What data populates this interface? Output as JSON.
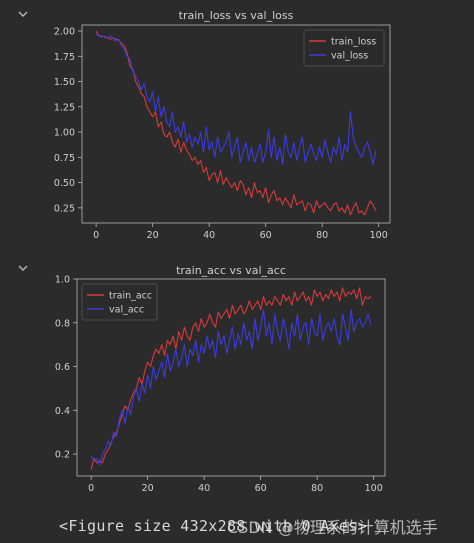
{
  "output_cells": [
    {
      "collapse_icon": "chevron-down-icon"
    },
    {
      "collapse_icon": "chevron-down-icon"
    }
  ],
  "colors": {
    "background": "#2b2b2b",
    "train": "#d63a3a",
    "val": "#3b3be0",
    "axis": "#b8b8b8",
    "text": "#cfcfcf"
  },
  "figure_output": {
    "text": "<Figure size 432x288 with 0 Axes>"
  },
  "watermark": {
    "text": "CSDN @物理系的计算机选手"
  },
  "chart_data": [
    {
      "type": "line",
      "title": "train_loss vs val_loss",
      "xlabel": "",
      "ylabel": "",
      "xlim": [
        -5,
        104
      ],
      "ylim": [
        0.1,
        2.06
      ],
      "xticks": [
        0,
        20,
        40,
        60,
        80,
        100
      ],
      "xtick_labels": [
        "0",
        "20",
        "40",
        "60",
        "80",
        "100"
      ],
      "yticks": [
        0.25,
        0.5,
        0.75,
        1.0,
        1.25,
        1.5,
        1.75,
        2.0
      ],
      "ytick_labels": [
        "0.25",
        "0.50",
        "0.75",
        "1.00",
        "1.25",
        "1.50",
        "1.75",
        "2.00"
      ],
      "legend_position": "upper right",
      "grid": false,
      "series": [
        {
          "name": "train_loss",
          "color": "#d63a3a",
          "x": [
            0,
            1,
            2,
            3,
            4,
            5,
            6,
            7,
            8,
            9,
            10,
            11,
            12,
            13,
            14,
            15,
            16,
            17,
            18,
            19,
            20,
            21,
            22,
            23,
            24,
            25,
            26,
            27,
            28,
            29,
            30,
            31,
            32,
            33,
            34,
            35,
            36,
            37,
            38,
            39,
            40,
            41,
            42,
            43,
            44,
            45,
            46,
            47,
            48,
            49,
            50,
            51,
            52,
            53,
            54,
            55,
            56,
            57,
            58,
            59,
            60,
            61,
            62,
            63,
            64,
            65,
            66,
            67,
            68,
            69,
            70,
            71,
            72,
            73,
            74,
            75,
            76,
            77,
            78,
            79,
            80,
            81,
            82,
            83,
            84,
            85,
            86,
            87,
            88,
            89,
            90,
            91,
            92,
            93,
            94,
            95,
            96,
            97,
            98,
            99
          ],
          "values": [
            2.0,
            1.95,
            1.95,
            1.94,
            1.93,
            1.92,
            1.93,
            1.92,
            1.91,
            1.88,
            1.85,
            1.78,
            1.65,
            1.62,
            1.5,
            1.45,
            1.38,
            1.35,
            1.25,
            1.2,
            1.15,
            1.2,
            1.05,
            1.1,
            0.98,
            0.95,
            1.0,
            0.9,
            0.85,
            0.93,
            0.8,
            0.9,
            0.82,
            0.78,
            0.72,
            0.75,
            0.68,
            0.72,
            0.6,
            0.65,
            0.52,
            0.58,
            0.6,
            0.5,
            0.62,
            0.48,
            0.55,
            0.5,
            0.45,
            0.5,
            0.42,
            0.52,
            0.48,
            0.38,
            0.45,
            0.35,
            0.5,
            0.4,
            0.42,
            0.35,
            0.45,
            0.3,
            0.38,
            0.42,
            0.32,
            0.35,
            0.28,
            0.35,
            0.3,
            0.25,
            0.38,
            0.28,
            0.3,
            0.32,
            0.22,
            0.3,
            0.28,
            0.2,
            0.32,
            0.25,
            0.28,
            0.3,
            0.25,
            0.22,
            0.28,
            0.3,
            0.22,
            0.25,
            0.2,
            0.28,
            0.18,
            0.25,
            0.3,
            0.2,
            0.22,
            0.18,
            0.25,
            0.32,
            0.28,
            0.22
          ]
        },
        {
          "name": "val_loss",
          "color": "#3b3be0",
          "x": [
            0,
            1,
            2,
            3,
            4,
            5,
            6,
            7,
            8,
            9,
            10,
            11,
            12,
            13,
            14,
            15,
            16,
            17,
            18,
            19,
            20,
            21,
            22,
            23,
            24,
            25,
            26,
            27,
            28,
            29,
            30,
            31,
            32,
            33,
            34,
            35,
            36,
            37,
            38,
            39,
            40,
            41,
            42,
            43,
            44,
            45,
            46,
            47,
            48,
            49,
            50,
            51,
            52,
            53,
            54,
            55,
            56,
            57,
            58,
            59,
            60,
            61,
            62,
            63,
            64,
            65,
            66,
            67,
            68,
            69,
            70,
            71,
            72,
            73,
            74,
            75,
            76,
            77,
            78,
            79,
            80,
            81,
            82,
            83,
            84,
            85,
            86,
            87,
            88,
            89,
            90,
            91,
            92,
            93,
            94,
            95,
            96,
            97,
            98,
            99
          ],
          "values": [
            1.97,
            1.95,
            1.94,
            1.95,
            1.93,
            1.95,
            1.93,
            1.9,
            1.92,
            1.85,
            1.82,
            1.75,
            1.72,
            1.6,
            1.55,
            1.5,
            1.42,
            1.48,
            1.35,
            1.3,
            1.4,
            1.2,
            1.35,
            1.15,
            1.25,
            1.1,
            1.05,
            1.2,
            1.0,
            1.05,
            0.95,
            1.1,
            0.9,
            0.98,
            0.85,
            0.95,
            0.88,
            1.0,
            0.8,
            1.05,
            0.82,
            0.9,
            0.75,
            0.95,
            0.8,
            0.85,
            0.9,
            1.0,
            0.75,
            0.85,
            0.95,
            0.7,
            0.8,
            0.9,
            0.72,
            0.85,
            0.7,
            0.78,
            0.88,
            0.7,
            0.8,
            1.02,
            0.75,
            0.95,
            0.72,
            0.85,
            0.68,
            0.98,
            0.8,
            0.75,
            0.9,
            0.72,
            0.85,
            0.95,
            0.7,
            0.8,
            0.88,
            0.78,
            0.72,
            0.85,
            0.75,
            0.92,
            0.8,
            0.7,
            0.85,
            0.78,
            0.95,
            0.72,
            0.88,
            0.8,
            1.2,
            0.95,
            0.85,
            0.8,
            0.75,
            0.85,
            0.9,
            0.8,
            0.68,
            0.82
          ]
        }
      ]
    },
    {
      "type": "line",
      "title": "train_acc vs val_acc",
      "xlabel": "",
      "ylabel": "",
      "xlim": [
        -5,
        104
      ],
      "ylim": [
        0.1,
        1.0
      ],
      "xticks": [
        0,
        20,
        40,
        60,
        80,
        100
      ],
      "xtick_labels": [
        "0",
        "20",
        "40",
        "60",
        "80",
        "100"
      ],
      "yticks": [
        0.2,
        0.4,
        0.6,
        0.8,
        1.0
      ],
      "ytick_labels": [
        "0.2",
        "0.4",
        "0.6",
        "0.8",
        "1.0"
      ],
      "legend_position": "upper left",
      "grid": false,
      "series": [
        {
          "name": "train_acc",
          "color": "#d63a3a",
          "x": [
            0,
            1,
            2,
            3,
            4,
            5,
            6,
            7,
            8,
            9,
            10,
            11,
            12,
            13,
            14,
            15,
            16,
            17,
            18,
            19,
            20,
            21,
            22,
            23,
            24,
            25,
            26,
            27,
            28,
            29,
            30,
            31,
            32,
            33,
            34,
            35,
            36,
            37,
            38,
            39,
            40,
            41,
            42,
            43,
            44,
            45,
            46,
            47,
            48,
            49,
            50,
            51,
            52,
            53,
            54,
            55,
            56,
            57,
            58,
            59,
            60,
            61,
            62,
            63,
            64,
            65,
            66,
            67,
            68,
            69,
            70,
            71,
            72,
            73,
            74,
            75,
            76,
            77,
            78,
            79,
            80,
            81,
            82,
            83,
            84,
            85,
            86,
            87,
            88,
            89,
            90,
            91,
            92,
            93,
            94,
            95,
            96,
            97,
            98,
            99
          ],
          "values": [
            0.13,
            0.18,
            0.16,
            0.17,
            0.16,
            0.2,
            0.22,
            0.25,
            0.28,
            0.3,
            0.34,
            0.38,
            0.42,
            0.4,
            0.45,
            0.48,
            0.5,
            0.55,
            0.52,
            0.58,
            0.62,
            0.6,
            0.65,
            0.68,
            0.66,
            0.7,
            0.65,
            0.72,
            0.7,
            0.74,
            0.68,
            0.76,
            0.72,
            0.78,
            0.74,
            0.72,
            0.78,
            0.8,
            0.76,
            0.82,
            0.78,
            0.8,
            0.84,
            0.8,
            0.78,
            0.85,
            0.82,
            0.84,
            0.86,
            0.82,
            0.88,
            0.84,
            0.86,
            0.88,
            0.84,
            0.86,
            0.9,
            0.86,
            0.88,
            0.9,
            0.86,
            0.92,
            0.88,
            0.9,
            0.88,
            0.92,
            0.9,
            0.88,
            0.93,
            0.9,
            0.92,
            0.88,
            0.94,
            0.9,
            0.92,
            0.94,
            0.9,
            0.92,
            0.88,
            0.95,
            0.92,
            0.94,
            0.9,
            0.93,
            0.91,
            0.95,
            0.92,
            0.94,
            0.9,
            0.96,
            0.92,
            0.94,
            0.93,
            0.95,
            0.91,
            0.96,
            0.88,
            0.92,
            0.91,
            0.92
          ]
        },
        {
          "name": "val_acc",
          "color": "#3b3be0",
          "x": [
            0,
            1,
            2,
            3,
            4,
            5,
            6,
            7,
            8,
            9,
            10,
            11,
            12,
            13,
            14,
            15,
            16,
            17,
            18,
            19,
            20,
            21,
            22,
            23,
            24,
            25,
            26,
            27,
            28,
            29,
            30,
            31,
            32,
            33,
            34,
            35,
            36,
            37,
            38,
            39,
            40,
            41,
            42,
            43,
            44,
            45,
            46,
            47,
            48,
            49,
            50,
            51,
            52,
            53,
            54,
            55,
            56,
            57,
            58,
            59,
            60,
            61,
            62,
            63,
            64,
            65,
            66,
            67,
            68,
            69,
            70,
            71,
            72,
            73,
            74,
            75,
            76,
            77,
            78,
            79,
            80,
            81,
            82,
            83,
            84,
            85,
            86,
            87,
            88,
            89,
            90,
            91,
            92,
            93,
            94,
            95,
            96,
            97,
            98,
            99
          ],
          "values": [
            0.19,
            0.17,
            0.18,
            0.15,
            0.2,
            0.22,
            0.26,
            0.24,
            0.3,
            0.28,
            0.36,
            0.4,
            0.34,
            0.42,
            0.38,
            0.46,
            0.5,
            0.44,
            0.52,
            0.48,
            0.56,
            0.5,
            0.6,
            0.54,
            0.58,
            0.62,
            0.55,
            0.66,
            0.58,
            0.62,
            0.68,
            0.6,
            0.64,
            0.7,
            0.6,
            0.68,
            0.65,
            0.72,
            0.62,
            0.7,
            0.66,
            0.74,
            0.68,
            0.72,
            0.64,
            0.76,
            0.7,
            0.74,
            0.66,
            0.72,
            0.78,
            0.68,
            0.75,
            0.7,
            0.8,
            0.72,
            0.76,
            0.68,
            0.82,
            0.72,
            0.78,
            0.86,
            0.74,
            0.8,
            0.7,
            0.84,
            0.76,
            0.72,
            0.82,
            0.76,
            0.68,
            0.8,
            0.74,
            0.84,
            0.72,
            0.78,
            0.8,
            0.7,
            0.82,
            0.76,
            0.74,
            0.84,
            0.72,
            0.78,
            0.8,
            0.76,
            0.82,
            0.74,
            0.7,
            0.84,
            0.78,
            0.72,
            0.86,
            0.76,
            0.8,
            0.82,
            0.78,
            0.8,
            0.84,
            0.79
          ]
        }
      ]
    }
  ]
}
